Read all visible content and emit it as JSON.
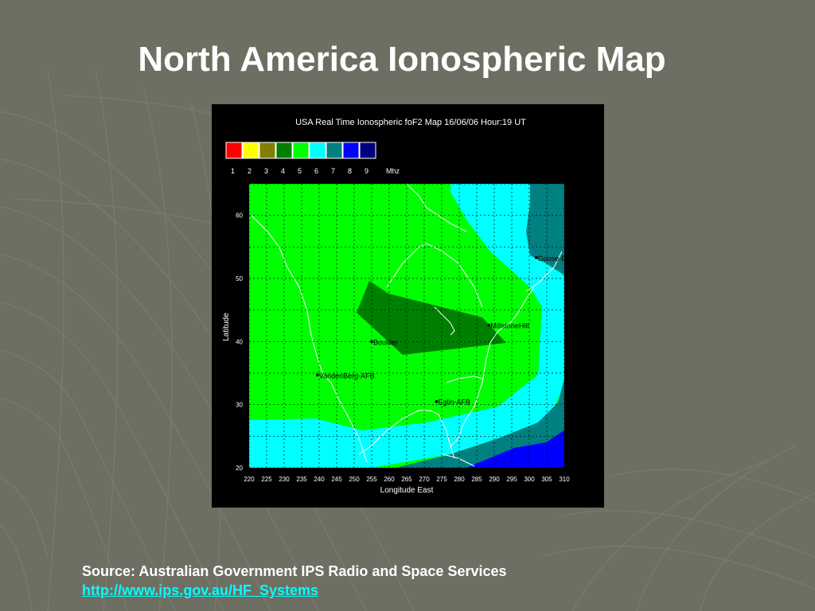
{
  "slide": {
    "title": "North America Ionospheric Map",
    "source_text": "Source: Australian Government IPS Radio and Space Services",
    "source_link": "http://www.ips.gov.au/HF_Systems",
    "background_color": "#6e6f62"
  },
  "map": {
    "title": "USA Real Time Ionospheric foF2 Map   16/06/06 Hour:19 UT",
    "legend": {
      "values": [
        "1",
        "2",
        "3",
        "4",
        "5",
        "6",
        "7",
        "8",
        "9"
      ],
      "unit": "Mhz",
      "colors": [
        "#ff0000",
        "#ffff00",
        "#808000",
        "#008000",
        "#00ff00",
        "#00ffff",
        "#008080",
        "#0000ff",
        "#000080"
      ]
    },
    "xlabel": "Longitude East",
    "ylabel": "Latitude",
    "x_ticks": [
      "220",
      "225",
      "230",
      "235",
      "240",
      "245",
      "250",
      "255",
      "260",
      "265",
      "270",
      "275",
      "280",
      "285",
      "290",
      "295",
      "300",
      "305",
      "310"
    ],
    "y_ticks": [
      "60",
      "50",
      "40",
      "30",
      "20"
    ],
    "xlim": [
      220,
      310
    ],
    "ylim": [
      20,
      65
    ],
    "stations": [
      {
        "name": "Goose-B",
        "lon": 302,
        "lat": 53.3
      },
      {
        "name": "MillstoneHill",
        "lon": 288.5,
        "lat": 42.6
      },
      {
        "name": "Boulder",
        "lon": 255,
        "lat": 40
      },
      {
        "name": "VandenBerg-AFB",
        "lon": 239.5,
        "lat": 34.7
      },
      {
        "name": "Eglin-AFB",
        "lon": 273.5,
        "lat": 30.5
      }
    ]
  }
}
